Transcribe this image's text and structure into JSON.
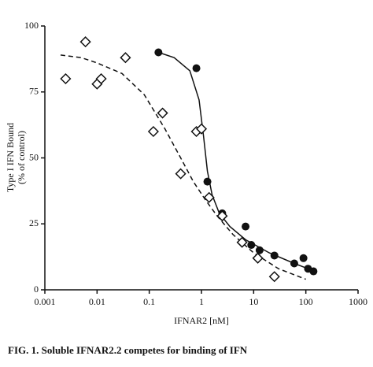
{
  "chart_data": {
    "type": "scatter",
    "y_label": "Type I IFN Bound",
    "y_label2": "(% of control)",
    "x_label": "IFNAR2 [nM]",
    "caption": "FIG. 1. Soluble IFNAR2.2 competes for binding of IFN",
    "xscale": "log",
    "xlim": [
      0.001,
      1000
    ],
    "xticks": [
      0.001,
      0.01,
      0.1,
      1,
      10,
      100,
      1000
    ],
    "ylim": [
      0,
      100
    ],
    "yticks": [
      0,
      25,
      50,
      75,
      100
    ],
    "series": [
      {
        "marker": "filled-circle",
        "color": "#111111",
        "x": [
          0.15,
          0.8,
          1.3,
          2.5,
          7,
          9,
          13,
          25,
          60,
          90,
          110,
          140
        ],
        "values": [
          90,
          84,
          41,
          29,
          24,
          17,
          15,
          13,
          10,
          12,
          8,
          7
        ]
      },
      {
        "marker": "open-diamond",
        "color": "#111111",
        "x": [
          0.0025,
          0.006,
          0.01,
          0.012,
          0.035,
          0.12,
          0.18,
          0.4,
          0.8,
          1.0,
          1.4,
          2.5,
          6,
          12,
          25
        ],
        "values": [
          80,
          94,
          78,
          80,
          88,
          60,
          67,
          44,
          60,
          61,
          35,
          28,
          18,
          12,
          5
        ]
      }
    ],
    "curves": [
      {
        "dash": "solid",
        "x": [
          0.15,
          0.3,
          0.6,
          0.9,
          1.1,
          1.3,
          1.6,
          2.2,
          3.5,
          7,
          20,
          60,
          150
        ],
        "values": [
          90,
          88,
          83,
          72,
          58,
          45,
          36,
          29,
          24,
          19,
          14,
          10,
          7
        ]
      },
      {
        "dash": "dashed",
        "x": [
          0.002,
          0.005,
          0.01,
          0.03,
          0.08,
          0.2,
          0.4,
          0.7,
          1.2,
          2,
          4,
          10,
          30,
          100
        ],
        "values": [
          89,
          88,
          86,
          82,
          74,
          61,
          50,
          41,
          34,
          28,
          21,
          14,
          8,
          4
        ]
      }
    ]
  }
}
